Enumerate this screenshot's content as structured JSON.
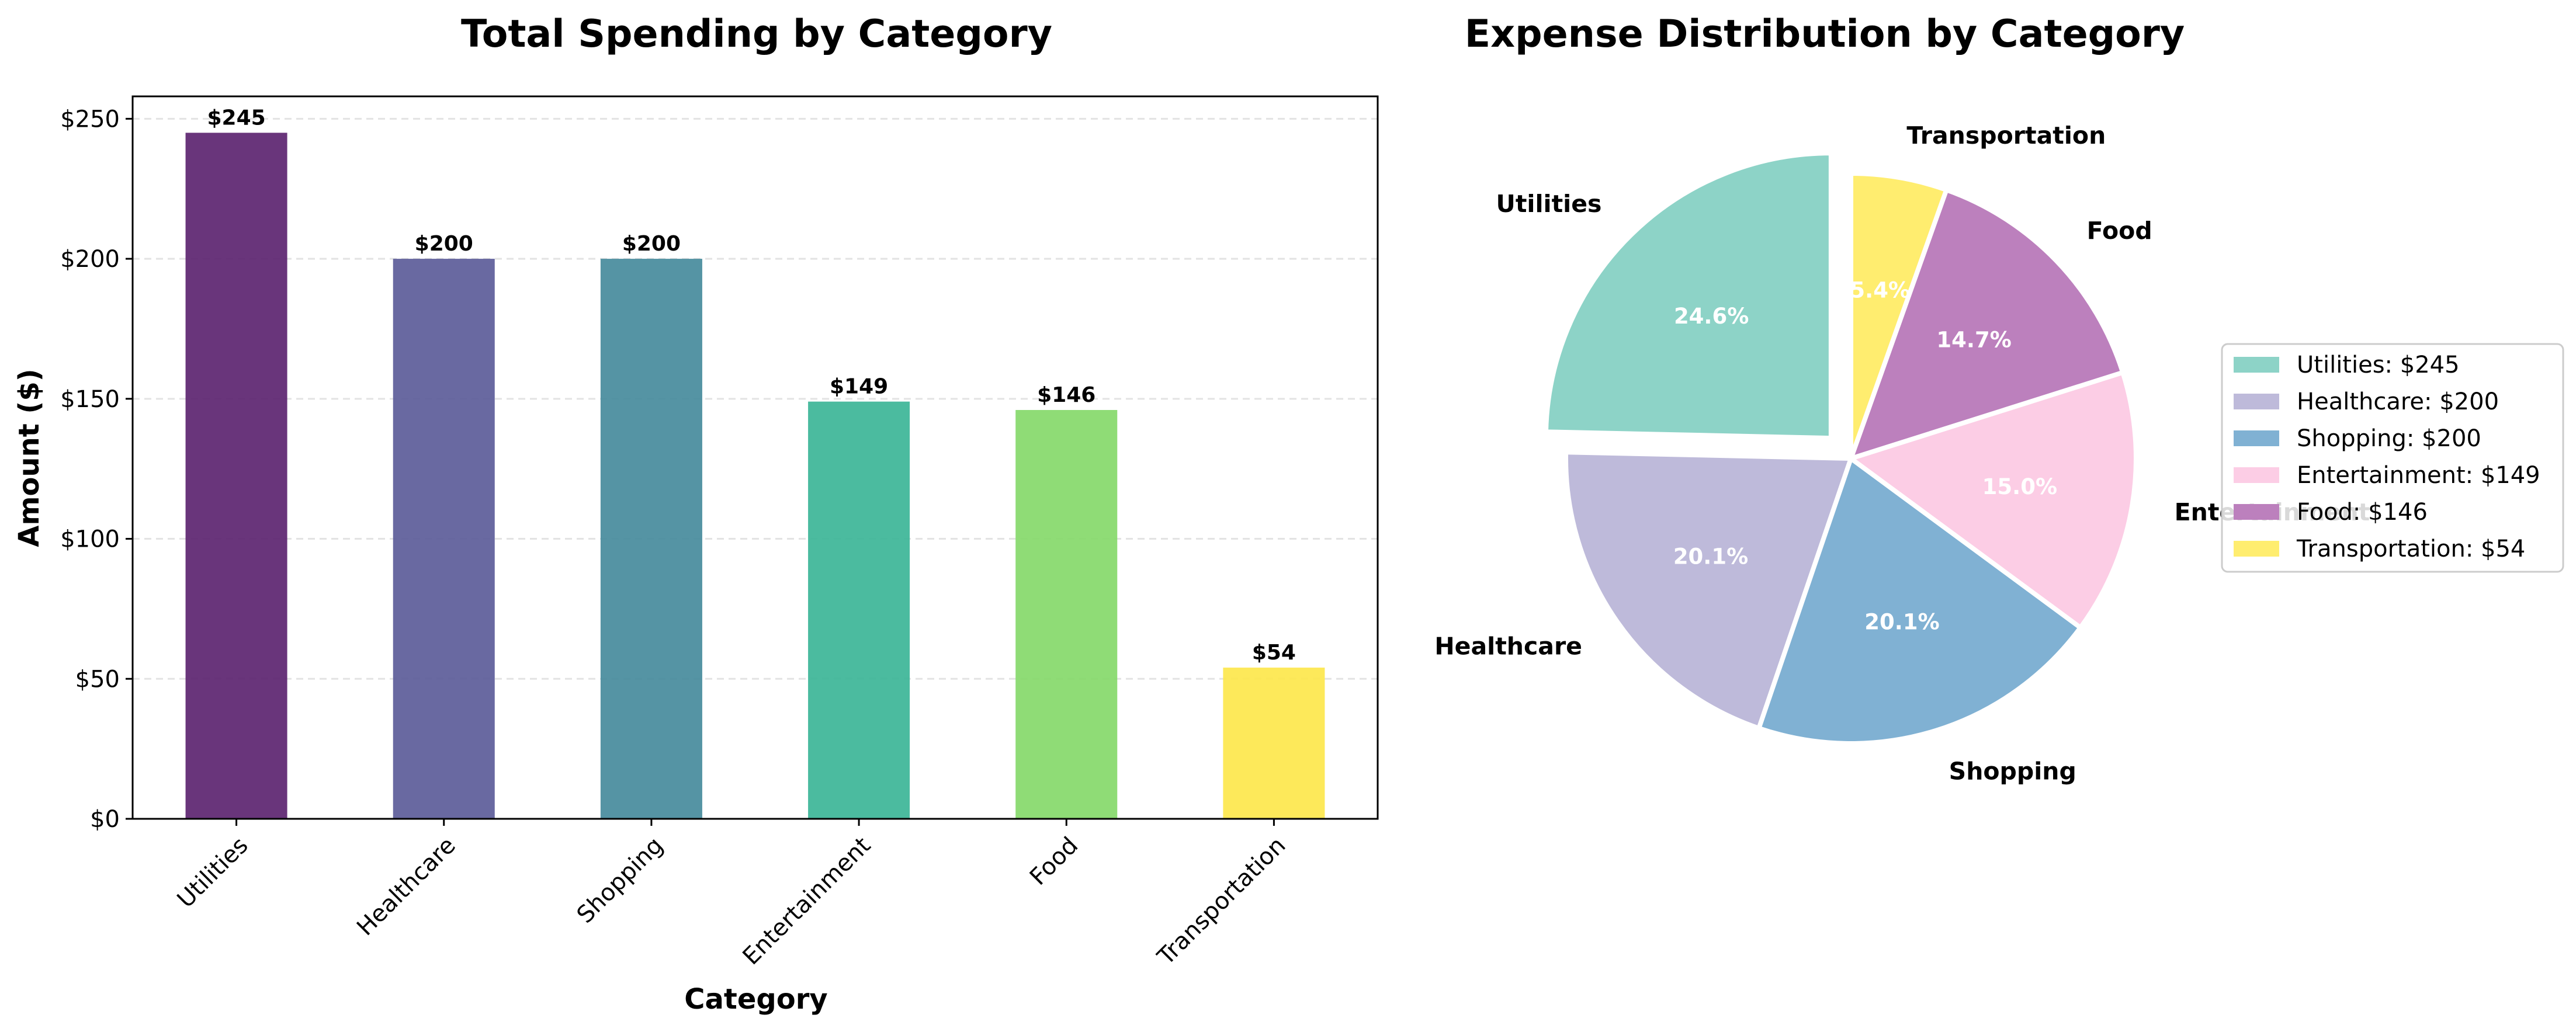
{
  "chart_data": [
    {
      "type": "bar",
      "title": "Total Spending by Category",
      "xlabel": "Category",
      "ylabel": "Amount ($)",
      "categories": [
        "Utilities",
        "Healthcare",
        "Shopping",
        "Entertainment",
        "Food",
        "Transportation"
      ],
      "values": [
        245,
        200,
        200,
        149,
        146,
        54
      ],
      "value_labels": [
        "$245",
        "$200",
        "$200",
        "$149",
        "$146",
        "$54"
      ],
      "ylim": [
        0,
        258
      ],
      "yticks": [
        0,
        50,
        100,
        150,
        200,
        250
      ],
      "ytick_labels": [
        "$0",
        "$50",
        "$100",
        "$150",
        "$200",
        "$250"
      ],
      "colors": [
        "#5c2470",
        "#5c5c99",
        "#478b9c",
        "#3cb597",
        "#86d96a",
        "#fde74c"
      ],
      "grid": "y-dashed"
    },
    {
      "type": "pie",
      "title": "Expense Distribution by Category",
      "categories": [
        "Utilities",
        "Healthcare",
        "Shopping",
        "Entertainment",
        "Food",
        "Transportation"
      ],
      "values": [
        245,
        200,
        200,
        149,
        146,
        54
      ],
      "percent_labels": [
        "24.6%",
        "20.1%",
        "20.1%",
        "15.0%",
        "14.7%",
        "5.4%"
      ],
      "colors": [
        "#8dd3c7",
        "#bebada",
        "#80b1d3",
        "#fccde5",
        "#bc80bd",
        "#ffed6f"
      ],
      "exploded": "Utilities",
      "legend": [
        "Utilities: $245",
        "Healthcare: $200",
        "Shopping: $200",
        "Entertainment: $149",
        "Food: $146",
        "Transportation: $54"
      ],
      "legend_position": "right"
    }
  ]
}
